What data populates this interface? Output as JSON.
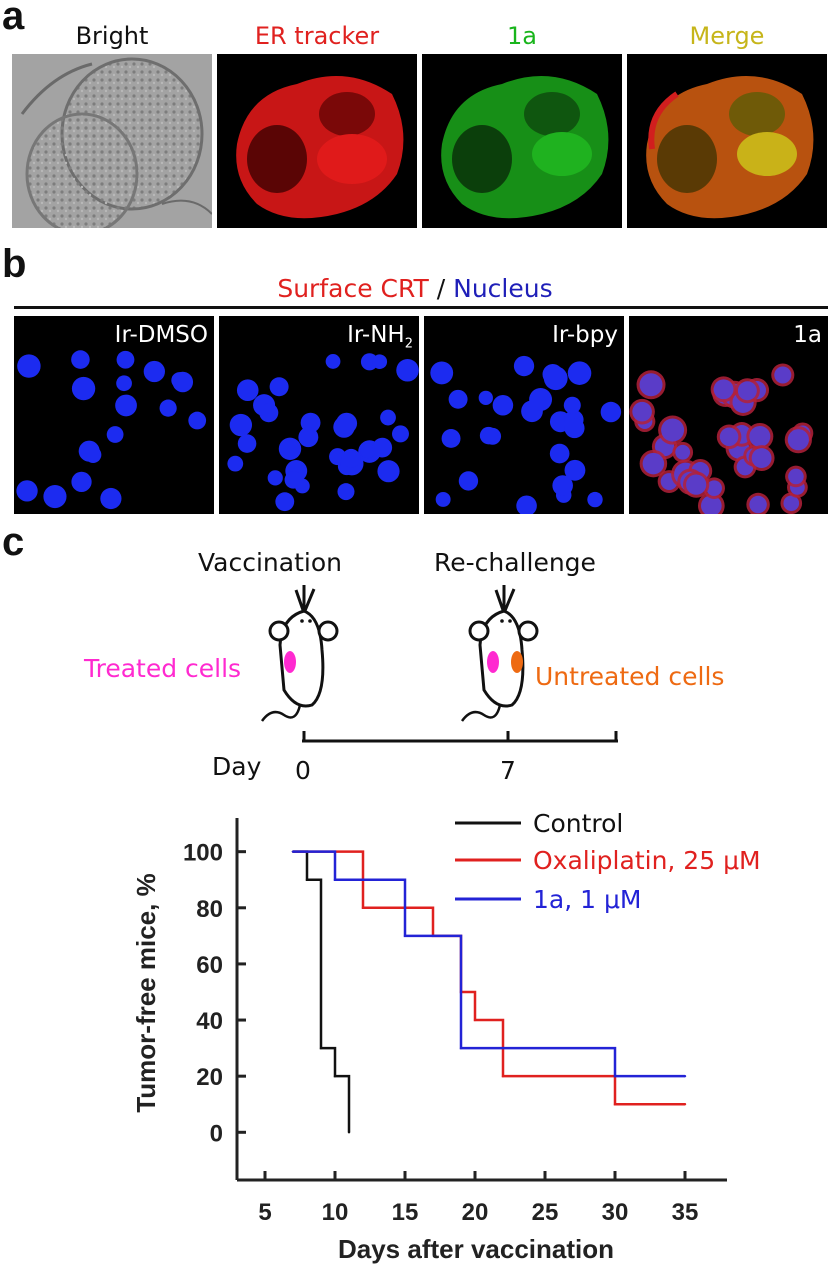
{
  "panel_a": {
    "letter": "a",
    "channels": [
      {
        "label": "Bright",
        "color": "#111111"
      },
      {
        "label": "ER tracker",
        "color": "#e0211f"
      },
      {
        "label": "1a",
        "color": "#19b51c"
      },
      {
        "label": "Merge",
        "color": "#c6b51a"
      }
    ]
  },
  "panel_b": {
    "letter": "b",
    "title_red": "Surface CRT",
    "title_sep": " / ",
    "title_blue": "Nucleus",
    "title_red_color": "#e0211f",
    "title_blue_color": "#1f1fb8",
    "treatments": [
      {
        "label": "Ir-DMSO"
      },
      {
        "label": "Ir-NH",
        "sub": "2"
      },
      {
        "label": "Ir-bpy"
      },
      {
        "label": "1a"
      }
    ]
  },
  "panel_c": {
    "letter": "c",
    "vaccination": "Vaccination",
    "rechallenge": "Re-challenge",
    "treated_cells": "Treated cells",
    "untreated_cells": "Untreated cells",
    "treated_color": "#ff2ad0",
    "untreated_color": "#ee6a12",
    "day_label": "Day",
    "day_ticks": [
      "0",
      "7"
    ]
  },
  "chart_data": {
    "type": "line",
    "step": true,
    "xlabel": "Days after vaccination",
    "ylabel": "Tumor-free mice, %",
    "xlim": [
      3,
      38
    ],
    "ylim": [
      -17,
      112
    ],
    "xticks": [
      5,
      10,
      15,
      20,
      25,
      30,
      35
    ],
    "yticks": [
      0,
      20,
      40,
      60,
      80,
      100
    ],
    "grid": false,
    "legend_position": "top-right",
    "series": [
      {
        "name": "Control",
        "color": "#111111",
        "x": [
          7,
          8,
          9,
          10,
          11
        ],
        "y": [
          100,
          90,
          30,
          20,
          0
        ]
      },
      {
        "name": "Oxaliplatin, 25 μM",
        "color": "#e0211f",
        "x": [
          7,
          12,
          17,
          19,
          20,
          22,
          30,
          35
        ],
        "y": [
          100,
          80,
          70,
          50,
          40,
          20,
          10,
          10
        ]
      },
      {
        "name": "1a, 1 μM",
        "color": "#2323d6",
        "x": [
          7,
          10,
          15,
          19,
          30,
          35
        ],
        "y": [
          100,
          90,
          70,
          30,
          20,
          20
        ]
      }
    ]
  }
}
